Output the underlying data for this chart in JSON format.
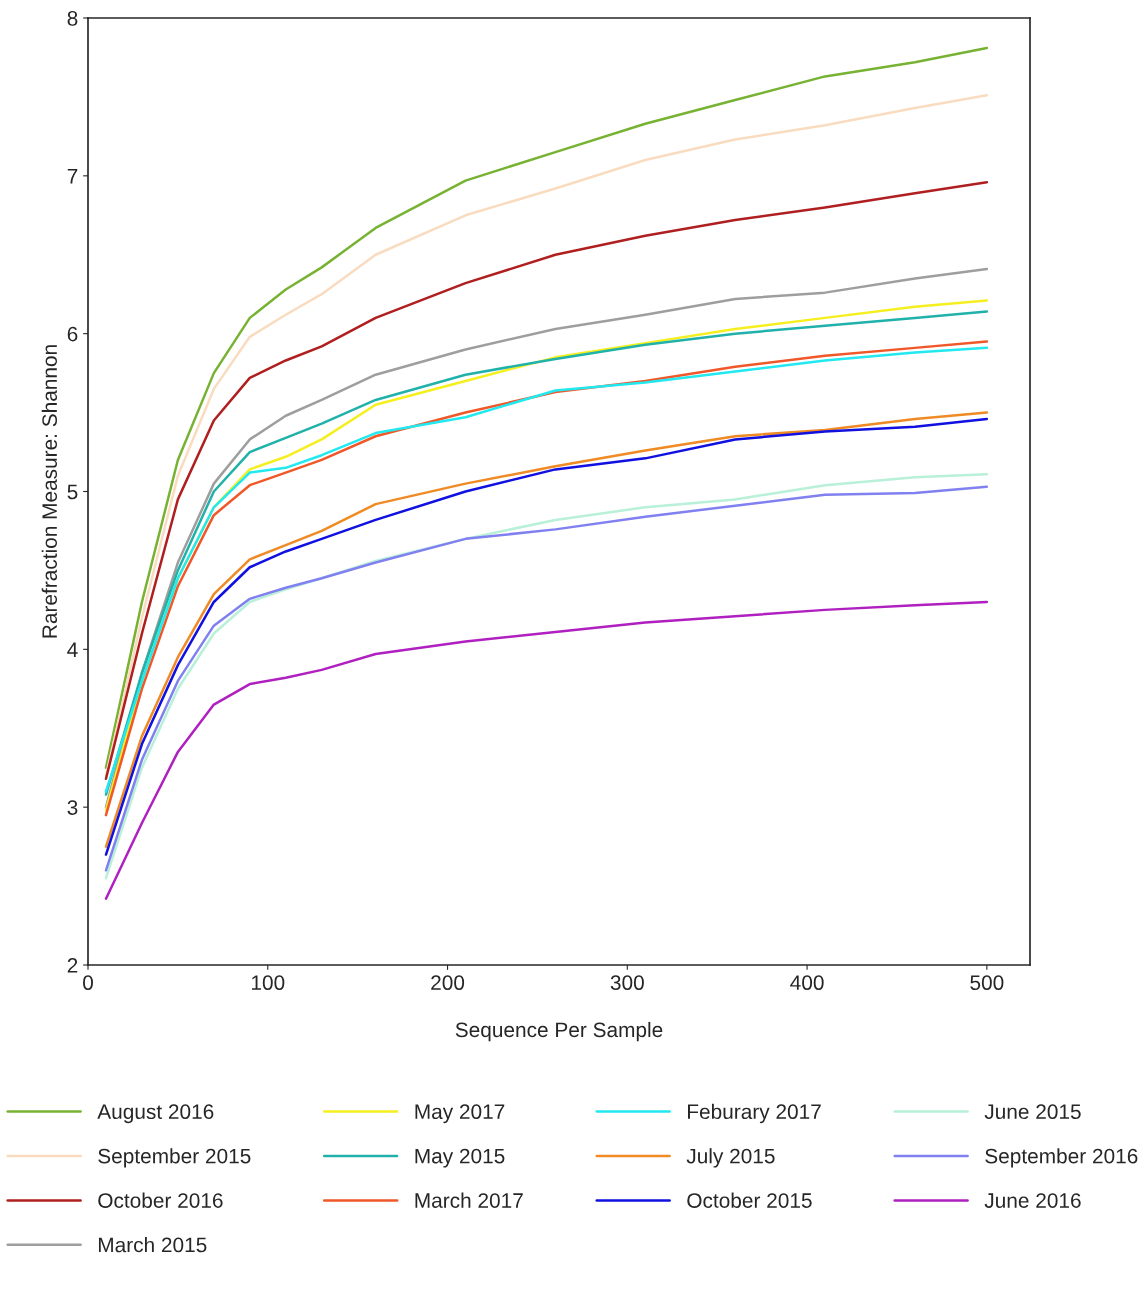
{
  "chart_data": {
    "type": "line",
    "xlabel": "Sequence Per Sample",
    "ylabel": "Rarefraction Measure: Shannon",
    "x": [
      10,
      30,
      50,
      70,
      90,
      110,
      130,
      160,
      210,
      260,
      310,
      360,
      410,
      460,
      500
    ],
    "xlim": [
      0,
      524
    ],
    "xticks": [
      0,
      100,
      200,
      300,
      400,
      500
    ],
    "ylim": [
      2,
      8
    ],
    "yticks": [
      2,
      3,
      4,
      5,
      6,
      7,
      8
    ],
    "grid": false,
    "legend": "bottom",
    "marker": "none",
    "line_style": "solid",
    "series": [
      {
        "name": "August 2016",
        "color": "#77b233",
        "values": [
          3.25,
          4.3,
          5.2,
          5.75,
          6.1,
          6.28,
          6.42,
          6.67,
          6.97,
          7.15,
          7.33,
          7.48,
          7.63,
          7.72,
          7.81
        ]
      },
      {
        "name": "September 2015",
        "color": "#f9dcc0",
        "values": [
          3.2,
          4.2,
          5.1,
          5.65,
          5.98,
          6.12,
          6.25,
          6.5,
          6.75,
          6.92,
          7.1,
          7.23,
          7.32,
          7.43,
          7.51
        ]
      },
      {
        "name": "October 2016",
        "color": "#b01f1f",
        "values": [
          3.18,
          4.1,
          4.95,
          5.45,
          5.72,
          5.83,
          5.92,
          6.1,
          6.32,
          6.5,
          6.62,
          6.72,
          6.8,
          6.89,
          6.96
        ]
      },
      {
        "name": "March 2015",
        "color": "#9e9e9e",
        "values": [
          3.0,
          3.85,
          4.55,
          5.05,
          5.33,
          5.48,
          5.58,
          5.74,
          5.9,
          6.03,
          6.12,
          6.22,
          6.26,
          6.35,
          6.41
        ]
      },
      {
        "name": "May 2017",
        "color": "#f5ef1f",
        "values": [
          2.98,
          3.8,
          4.45,
          4.9,
          5.14,
          5.22,
          5.33,
          5.55,
          5.7,
          5.85,
          5.94,
          6.03,
          6.1,
          6.17,
          6.21
        ]
      },
      {
        "name": "May 2015",
        "color": "#20b2aa",
        "values": [
          3.08,
          3.85,
          4.5,
          5.0,
          5.25,
          5.34,
          5.43,
          5.58,
          5.74,
          5.84,
          5.93,
          6.0,
          6.05,
          6.1,
          6.14
        ]
      },
      {
        "name": "March 2017",
        "color": "#f0582a",
        "values": [
          2.95,
          3.75,
          4.4,
          4.85,
          5.04,
          5.12,
          5.2,
          5.35,
          5.5,
          5.63,
          5.7,
          5.79,
          5.86,
          5.91,
          5.95
        ]
      },
      {
        "name": "Feburary 2017",
        "color": "#22e8f0",
        "values": [
          3.1,
          3.8,
          4.45,
          4.9,
          5.12,
          5.15,
          5.23,
          5.37,
          5.47,
          5.64,
          5.69,
          5.76,
          5.83,
          5.88,
          5.91
        ]
      },
      {
        "name": "July 2015",
        "color": "#f08a24",
        "values": [
          2.75,
          3.45,
          3.95,
          4.35,
          4.57,
          4.66,
          4.75,
          4.92,
          5.05,
          5.16,
          5.26,
          5.35,
          5.39,
          5.46,
          5.5
        ]
      },
      {
        "name": "October 2015",
        "color": "#1010e0",
        "values": [
          2.7,
          3.4,
          3.9,
          4.3,
          4.52,
          4.62,
          4.7,
          4.82,
          5.0,
          5.14,
          5.21,
          5.33,
          5.38,
          5.41,
          5.46
        ]
      },
      {
        "name": "June 2015",
        "color": "#b8f0d8",
        "values": [
          2.55,
          3.25,
          3.75,
          4.1,
          4.3,
          4.38,
          4.45,
          4.56,
          4.7,
          4.82,
          4.9,
          4.95,
          5.04,
          5.09,
          5.11
        ]
      },
      {
        "name": "September 2016",
        "color": "#8080f0",
        "values": [
          2.6,
          3.3,
          3.8,
          4.15,
          4.32,
          4.39,
          4.45,
          4.55,
          4.7,
          4.76,
          4.84,
          4.91,
          4.98,
          4.99,
          5.03
        ]
      },
      {
        "name": "June 2016",
        "color": "#b020c0",
        "values": [
          2.42,
          2.9,
          3.35,
          3.65,
          3.78,
          3.82,
          3.87,
          3.97,
          4.05,
          4.11,
          4.17,
          4.21,
          4.25,
          4.28,
          4.3
        ]
      }
    ]
  }
}
